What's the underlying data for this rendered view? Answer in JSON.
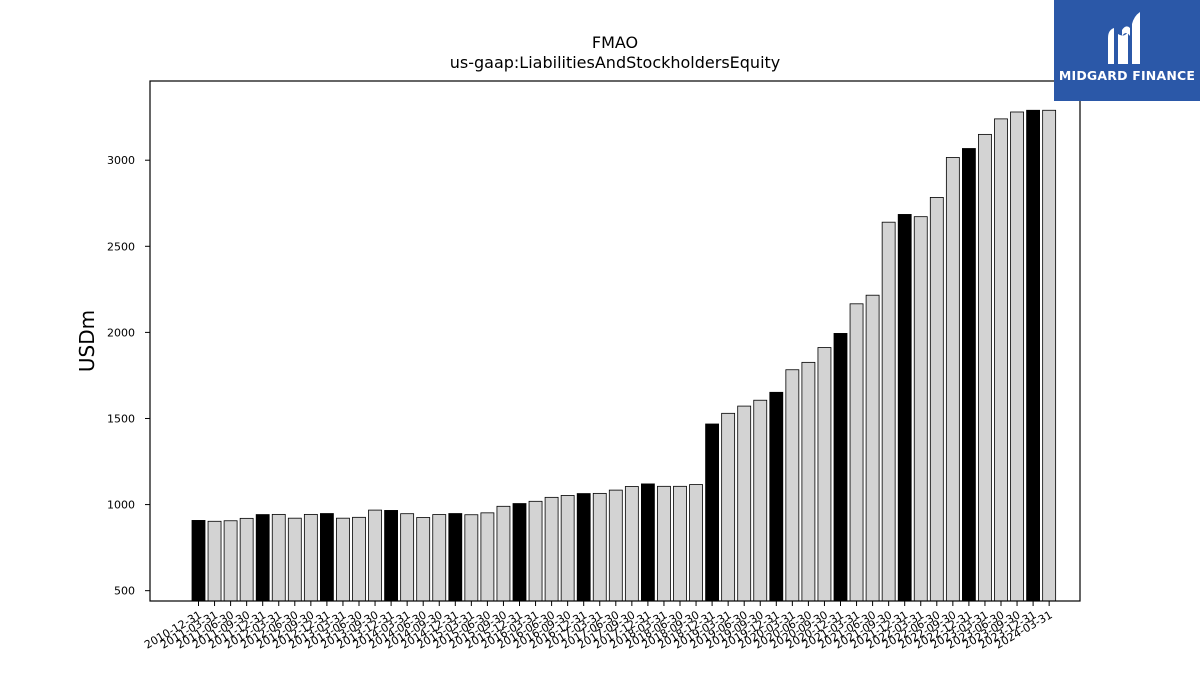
{
  "chart_data": {
    "type": "bar",
    "title": "FMAO",
    "subtitle": "us-gaap:LiabilitiesAndStockholdersEquity",
    "xlabel": "",
    "ylabel": "USDm",
    "ylim": [
      440,
      3460
    ],
    "yticks": [
      500,
      1000,
      1500,
      2000,
      2500,
      3000
    ],
    "grid": false,
    "colors": {
      "year_end": "#000000",
      "quarter": "#d3d3d3",
      "edge": "#000000"
    },
    "categories": [
      "2010-12-31",
      "2011-03-31",
      "2011-06-30",
      "2011-09-30",
      "2011-12-31",
      "2012-03-31",
      "2012-06-30",
      "2012-09-30",
      "2012-12-31",
      "2013-03-31",
      "2013-06-30",
      "2013-09-30",
      "2013-12-31",
      "2014-03-31",
      "2014-06-30",
      "2014-09-30",
      "2014-12-31",
      "2015-03-31",
      "2015-06-30",
      "2015-09-30",
      "2015-12-31",
      "2016-03-31",
      "2016-06-30",
      "2016-09-30",
      "2016-12-31",
      "2017-03-31",
      "2017-06-30",
      "2017-09-30",
      "2017-12-31",
      "2018-03-31",
      "2018-06-30",
      "2018-09-30",
      "2018-12-31",
      "2019-03-31",
      "2019-06-30",
      "2019-09-30",
      "2019-12-31",
      "2020-03-31",
      "2020-06-30",
      "2020-09-30",
      "2020-12-31",
      "2021-03-31",
      "2021-06-30",
      "2021-09-30",
      "2021-12-31",
      "2022-03-31",
      "2022-06-30",
      "2022-09-30",
      "2022-12-31",
      "2023-03-31",
      "2023-06-30",
      "2023-09-30",
      "2023-12-31",
      "2024-03-31"
    ],
    "values": [
      908,
      903,
      906,
      920,
      942,
      943,
      921,
      943,
      948,
      921,
      926,
      968,
      966,
      947,
      925,
      942,
      948,
      941,
      952,
      990,
      1006,
      1019,
      1042,
      1053,
      1064,
      1065,
      1084,
      1105,
      1120,
      1106,
      1106,
      1116,
      1468,
      1530,
      1572,
      1606,
      1652,
      1783,
      1826,
      1912,
      1994,
      2166,
      2216,
      2640,
      2685,
      2672,
      2784,
      3016,
      3068,
      3150,
      3240,
      3280,
      3290,
      3290
    ],
    "year_end": [
      true,
      false,
      false,
      false,
      true,
      false,
      false,
      false,
      true,
      false,
      false,
      false,
      true,
      false,
      false,
      false,
      true,
      false,
      false,
      false,
      true,
      false,
      false,
      false,
      true,
      false,
      false,
      false,
      true,
      false,
      false,
      false,
      true,
      false,
      false,
      false,
      true,
      false,
      false,
      false,
      true,
      false,
      false,
      false,
      true,
      false,
      false,
      false,
      true,
      false,
      false,
      false,
      true,
      false
    ]
  },
  "logo": {
    "brand": "MIDGARD FINANCE",
    "icon": "midgard-m-logo-icon",
    "background": "#2b58a8"
  }
}
